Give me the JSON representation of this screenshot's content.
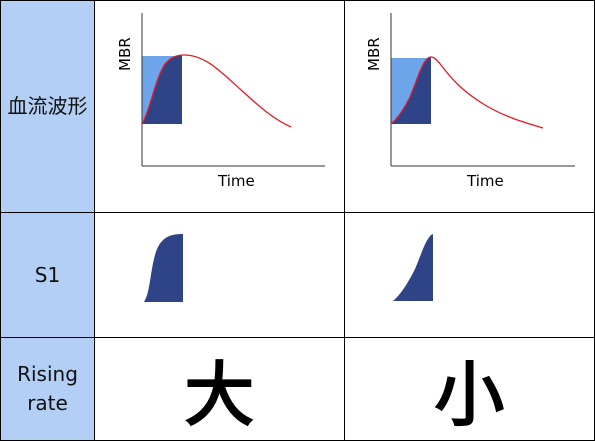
{
  "rows": [
    {
      "label": "血流波形"
    },
    {
      "label": "S1"
    },
    {
      "label_line1": "Rising",
      "label_line2": "rate"
    }
  ],
  "axes": {
    "y": "MBR",
    "x": "Time"
  },
  "rating": {
    "left": "大",
    "right": "小"
  },
  "colors": {
    "header_bg": "#b3cff5",
    "dark_fill": "#2f4486",
    "light_fill": "#6ea4ea",
    "curve": "#e51b24"
  }
}
